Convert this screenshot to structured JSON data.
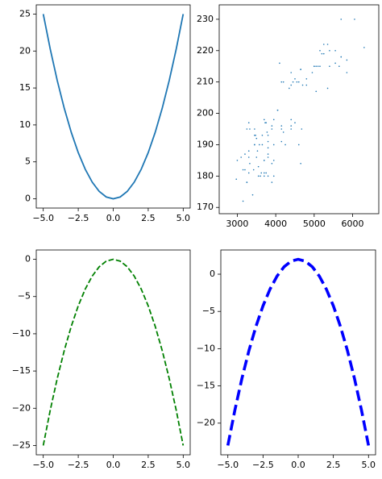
{
  "chart_data": [
    {
      "type": "line",
      "color": "#1f77b4",
      "linestyle": "solid",
      "linewidth": 1.5,
      "x": [
        -5,
        -4.5,
        -4,
        -3.5,
        -3,
        -2.5,
        -2,
        -1.5,
        -1,
        -0.5,
        0,
        0.5,
        1,
        1.5,
        2,
        2.5,
        3,
        3.5,
        4,
        4.5,
        5
      ],
      "values": [
        25,
        20.25,
        16,
        12.25,
        9,
        6.25,
        4,
        2.25,
        1,
        0.25,
        0,
        0.25,
        1,
        2.25,
        4,
        6.25,
        9,
        12.25,
        16,
        20.25,
        25
      ],
      "xlim": [
        -5.5,
        5.5
      ],
      "ylim": [
        -1.25,
        26.25
      ],
      "xticks": [
        {
          "value": -5,
          "label": "−5.0"
        },
        {
          "value": -2.5,
          "label": "−2.5"
        },
        {
          "value": 0,
          "label": "0.0"
        },
        2.5,
        {
          "value": 5,
          "label": "5.0"
        }
      ],
      "yticks": [
        0,
        5,
        10,
        15,
        20,
        25
      ]
    },
    {
      "type": "scatter",
      "color": "#1f77b4",
      "x": [
        3750,
        3800,
        3250,
        3450,
        3650,
        3625,
        4675,
        3475,
        4250,
        3300,
        3700,
        3200,
        3800,
        4400,
        3700,
        3450,
        4500,
        3325,
        4200,
        3400,
        3600,
        3800,
        3950,
        3800,
        3800,
        3550,
        3200,
        3150,
        3950,
        3250,
        3900,
        3300,
        3900,
        3325,
        4150,
        3950,
        3550,
        3300,
        4650,
        3150,
        3900,
        3100,
        4400,
        3000,
        4600,
        3425,
        2975,
        3450,
        4150,
        3500,
        4500,
        5700,
        4450,
        5700,
        5400,
        4550,
        4800,
        5200,
        4400,
        5150,
        4650,
        5550,
        4650,
        5850,
        4200,
        5850,
        4150,
        6300,
        4800,
        5350,
        5700,
        5000,
        4400,
        5050,
        5000,
        5100,
        4100,
        5650,
        4600,
        5550,
        5250,
        4700,
        5050,
        6050,
        5150,
        5400,
        4950,
        5250,
        4350,
        5350,
        3500,
        3900,
        3650,
        3525,
        3725,
        3950,
        3250,
        3750,
        4150,
        3700,
        3800,
        3775,
        3700,
        4050,
        3575,
        4050,
        3300,
        3700,
        3450,
        4400
      ],
      "values": [
        181,
        186,
        195,
        193,
        190,
        181,
        195,
        193,
        190,
        186,
        180,
        182,
        191,
        198,
        185,
        195,
        197,
        184,
        194,
        174,
        180,
        189,
        185,
        180,
        187,
        183,
        187,
        172,
        180,
        178,
        178,
        188,
        184,
        195,
        196,
        190,
        180,
        181,
        184,
        182,
        195,
        186,
        196,
        185,
        190,
        182,
        179,
        190,
        191,
        186,
        211,
        230,
        210,
        218,
        215,
        210,
        211,
        219,
        209,
        215,
        214,
        216,
        214,
        213,
        210,
        217,
        210,
        221,
        209,
        222,
        218,
        215,
        213,
        215,
        215,
        215,
        216,
        215,
        210,
        220,
        222,
        209,
        207,
        230,
        220,
        220,
        213,
        219,
        208,
        208,
        192,
        196,
        193,
        188,
        197,
        198,
        178,
        197,
        195,
        198,
        193,
        194,
        185,
        201,
        190,
        201,
        197,
        181,
        190,
        195
      ],
      "xlim": [
        2530,
        6680
      ],
      "ylim": [
        168,
        234.6
      ],
      "xticks": [
        3000,
        4000,
        5000,
        6000
      ],
      "yticks": [
        170,
        180,
        190,
        200,
        210,
        220,
        230
      ]
    },
    {
      "type": "line",
      "color": "#008000",
      "linestyle": "dashed",
      "linewidth": 1.5,
      "x": [
        -5,
        -4.5,
        -4,
        -3.5,
        -3,
        -2.5,
        -2,
        -1.5,
        -1,
        -0.5,
        0,
        0.5,
        1,
        1.5,
        2,
        2.5,
        3,
        3.5,
        4,
        4.5,
        5
      ],
      "values": [
        -25,
        -20.25,
        -16,
        -12.25,
        -9,
        -6.25,
        -4,
        -2.25,
        -1,
        -0.25,
        0,
        -0.25,
        -1,
        -2.25,
        -4,
        -6.25,
        -9,
        -12.25,
        -16,
        -20.25,
        -25
      ],
      "xlim": [
        -5.5,
        5.5
      ],
      "ylim": [
        -26.25,
        1.25
      ],
      "xticks": [
        {
          "value": -5,
          "label": "−5.0"
        },
        {
          "value": -2.5,
          "label": "−2.5"
        },
        {
          "value": 0,
          "label": "0.0"
        },
        2.5,
        {
          "value": 5,
          "label": "5.0"
        }
      ],
      "yticks": [
        {
          "value": -25,
          "label": "−25"
        },
        {
          "value": -20,
          "label": "−20"
        },
        {
          "value": -15,
          "label": "−15"
        },
        {
          "value": -10,
          "label": "−10"
        },
        {
          "value": -5,
          "label": "−5"
        },
        0
      ]
    },
    {
      "type": "line",
      "color": "#0000ff",
      "linestyle": "dashed",
      "linewidth": 3,
      "x": [
        -5,
        -4.5,
        -4,
        -3.5,
        -3,
        -2.5,
        -2,
        -1.5,
        -1,
        -0.5,
        0,
        0.5,
        1,
        1.5,
        2,
        2.5,
        3,
        3.5,
        4,
        4.5,
        5
      ],
      "values": [
        -23,
        -18.25,
        -14,
        -10.25,
        -7,
        -4.25,
        -2,
        -0.25,
        1,
        1.75,
        2,
        1.75,
        1,
        -0.25,
        -2,
        -4.25,
        -7,
        -10.25,
        -14,
        -18.25,
        -23
      ],
      "xlim": [
        -5.5,
        5.5
      ],
      "ylim": [
        -24.25,
        3.25
      ],
      "xticks": [
        {
          "value": -5,
          "label": "−5.0"
        },
        {
          "value": -2.5,
          "label": "−2.5"
        },
        {
          "value": 0,
          "label": "0.0"
        },
        2.5,
        {
          "value": 5,
          "label": "5.0"
        }
      ],
      "yticks": [
        {
          "value": -20,
          "label": "−20"
        },
        {
          "value": -15,
          "label": "−15"
        },
        {
          "value": -10,
          "label": "−10"
        },
        {
          "value": -5,
          "label": "−5"
        },
        0
      ]
    }
  ]
}
